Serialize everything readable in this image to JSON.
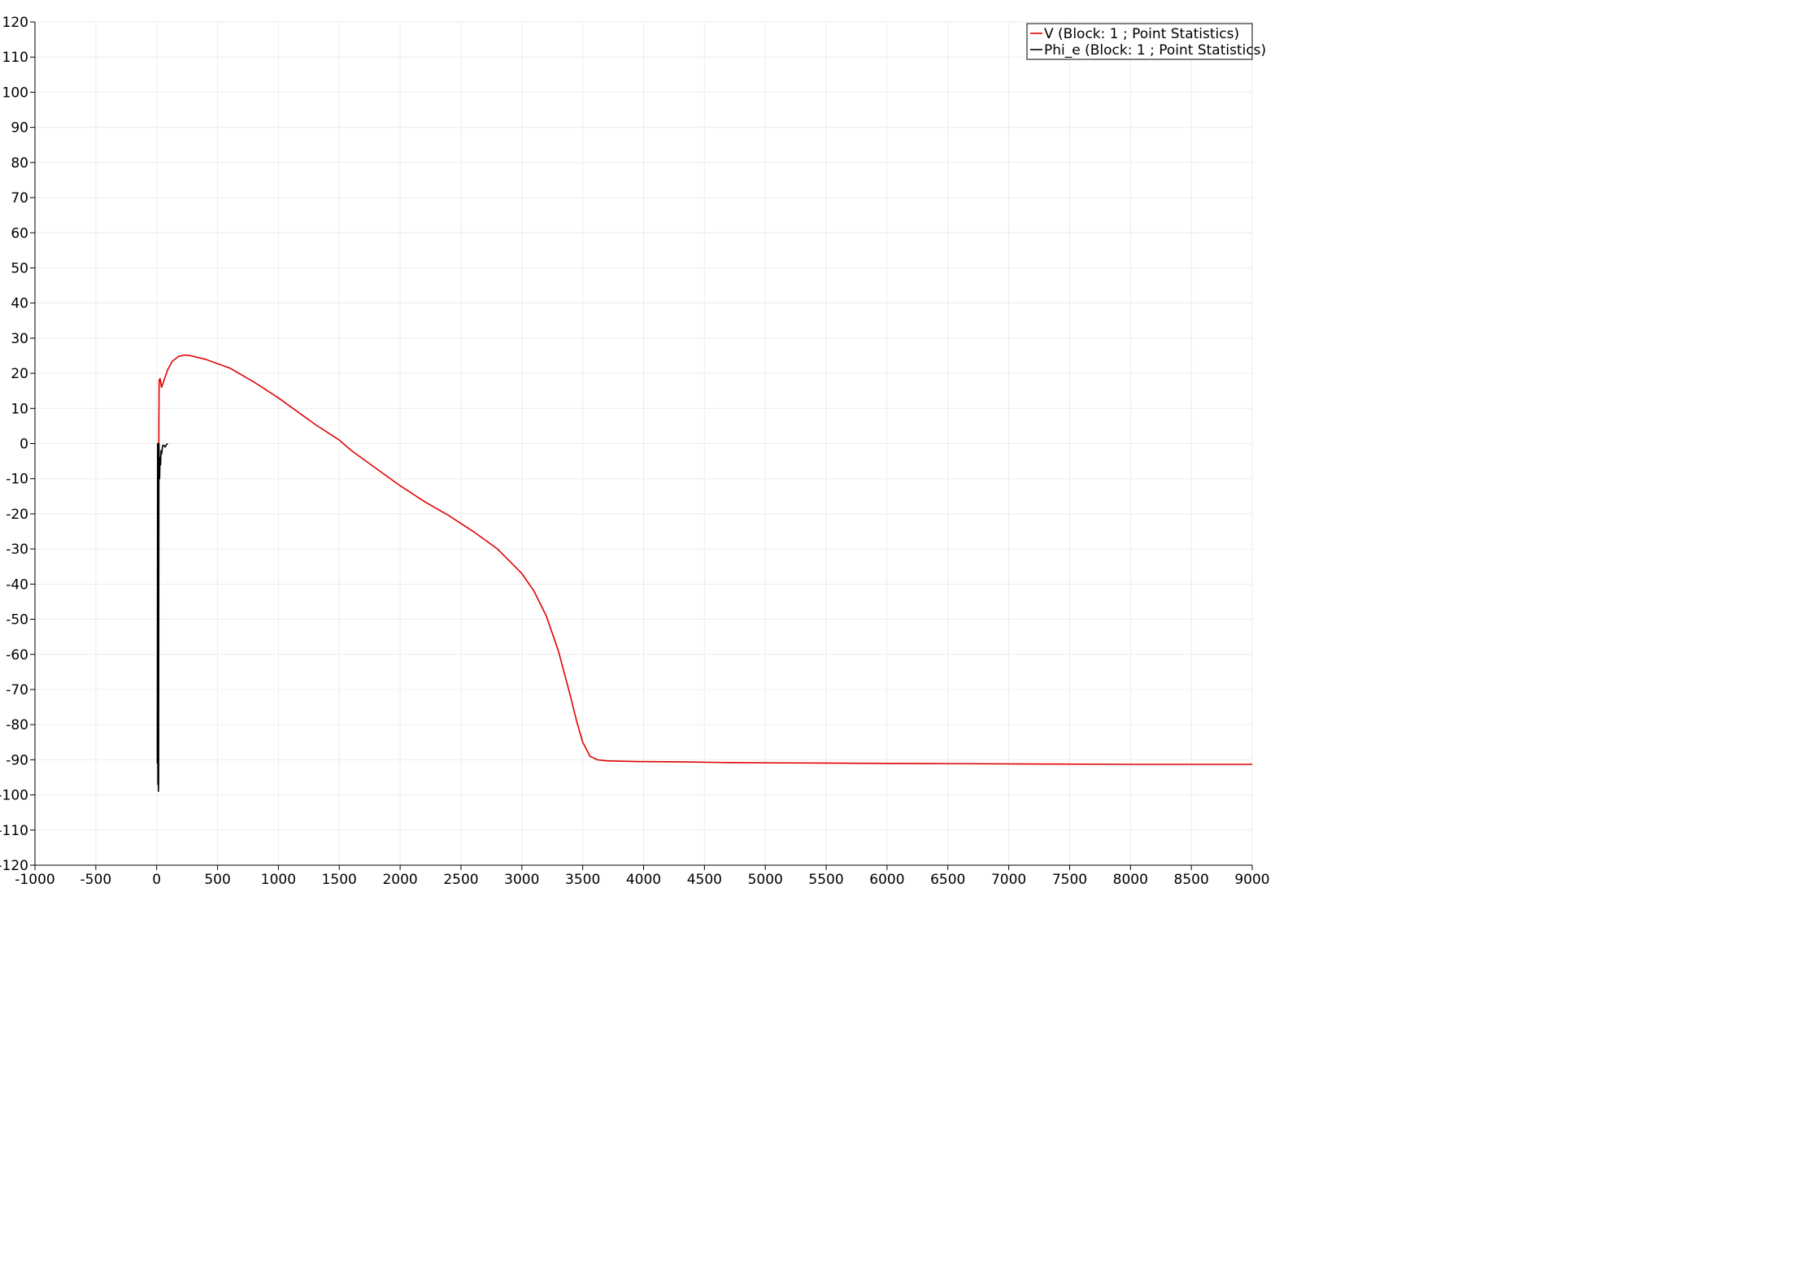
{
  "chart_data": {
    "type": "line",
    "title": "",
    "xlabel": "",
    "ylabel": "",
    "xlim": [
      -1000,
      9000
    ],
    "ylim": [
      -120,
      120
    ],
    "grid": true,
    "legend_position": "top-right",
    "x_ticks": [
      "-1000",
      "-500",
      "0",
      "500",
      "1000",
      "1500",
      "2000",
      "2500",
      "3000",
      "3500",
      "4000",
      "4500",
      "5000",
      "5500",
      "6000",
      "6500",
      "7000",
      "7500",
      "8000",
      "8500",
      "9000"
    ],
    "y_ticks": [
      "120",
      "110",
      "100",
      "90",
      "80",
      "70",
      "60",
      "50",
      "40",
      "30",
      "20",
      "10",
      "0",
      "-10",
      "-20",
      "-30",
      "-40",
      "-50",
      "-60",
      "-70",
      "-80",
      "-90",
      "-100",
      "-110",
      "-120"
    ],
    "series": [
      {
        "name": "V (Block: 1 ; Point Statistics)",
        "color": "#e00000",
        "points": [
          [
            5,
            -91
          ],
          [
            10,
            -91
          ],
          [
            14,
            -50
          ],
          [
            16,
            -55
          ],
          [
            18,
            5
          ],
          [
            20,
            18
          ],
          [
            28,
            18.5
          ],
          [
            40,
            16
          ],
          [
            60,
            18
          ],
          [
            90,
            21
          ],
          [
            130,
            23.5
          ],
          [
            180,
            24.8
          ],
          [
            230,
            25.2
          ],
          [
            280,
            25
          ],
          [
            400,
            24
          ],
          [
            600,
            21.5
          ],
          [
            800,
            17.5
          ],
          [
            1000,
            13
          ],
          [
            1200,
            8
          ],
          [
            1300,
            5.5
          ],
          [
            1500,
            1
          ],
          [
            1600,
            -2
          ],
          [
            1800,
            -7
          ],
          [
            2000,
            -12
          ],
          [
            2200,
            -16.5
          ],
          [
            2400,
            -20.5
          ],
          [
            2600,
            -25
          ],
          [
            2800,
            -30
          ],
          [
            3000,
            -37
          ],
          [
            3100,
            -42
          ],
          [
            3200,
            -49
          ],
          [
            3300,
            -59
          ],
          [
            3400,
            -72
          ],
          [
            3450,
            -79
          ],
          [
            3500,
            -85
          ],
          [
            3560,
            -89
          ],
          [
            3620,
            -90
          ],
          [
            3700,
            -90.3
          ],
          [
            3800,
            -90.4
          ],
          [
            3950,
            -90.5
          ],
          [
            4300,
            -90.6
          ],
          [
            4700,
            -90.8
          ],
          [
            5200,
            -90.9
          ],
          [
            5800,
            -91
          ],
          [
            6500,
            -91.1
          ],
          [
            7200,
            -91.2
          ],
          [
            8000,
            -91.3
          ],
          [
            9000,
            -91.3
          ]
        ]
      },
      {
        "name": "Phi_e (Block: 1 ; Point Statistics)",
        "color": "#000000",
        "points": [
          [
            5,
            -91
          ],
          [
            8,
            0
          ],
          [
            10,
            -97
          ],
          [
            12,
            0
          ],
          [
            14,
            -99
          ],
          [
            16,
            -96
          ],
          [
            18,
            0
          ],
          [
            20,
            -3
          ],
          [
            24,
            -10
          ],
          [
            28,
            -4
          ],
          [
            32,
            -6
          ],
          [
            36,
            -2
          ],
          [
            40,
            -3
          ],
          [
            50,
            -0.5
          ],
          [
            60,
            -0.5
          ],
          [
            70,
            -1
          ],
          [
            80,
            -0.3
          ],
          [
            90,
            0
          ]
        ]
      }
    ]
  }
}
